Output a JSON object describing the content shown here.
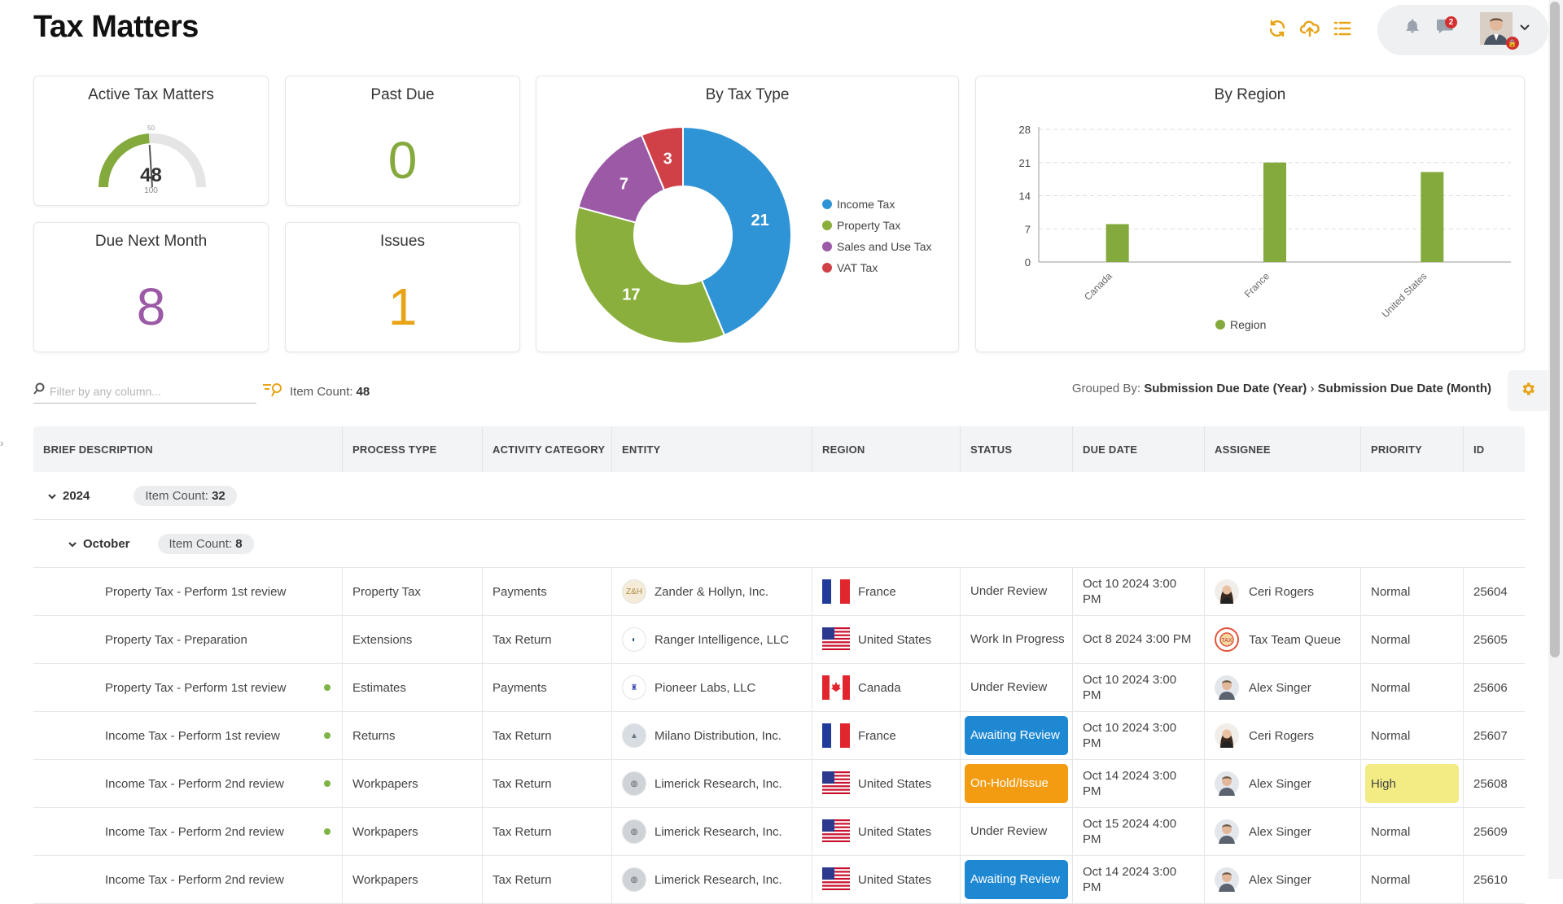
{
  "page": {
    "title": "Tax Matters"
  },
  "header": {
    "icons": [
      "refresh-icon",
      "upload-cloud-icon",
      "list-icon"
    ],
    "notification_icon": "bell-icon",
    "messages_icon": "chat-icon",
    "messages_count": "2",
    "user_menu_icon": "chevron-down-icon"
  },
  "cards": {
    "active": {
      "title": "Active Tax Matters",
      "value": "48",
      "gauge_min_label": "50",
      "gauge_max_label": "100",
      "gauge_fraction": 0.48
    },
    "past_due": {
      "title": "Past Due",
      "value": "0"
    },
    "due_next": {
      "title": "Due Next Month",
      "value": "8"
    },
    "issues": {
      "title": "Issues",
      "value": "1"
    }
  },
  "chart_data": [
    {
      "type": "pie",
      "title": "By Tax Type",
      "categories": [
        "Income Tax",
        "Property Tax",
        "Sales and Use Tax",
        "VAT Tax"
      ],
      "values": [
        21,
        17,
        7,
        3
      ],
      "colors": [
        "#2f94d6",
        "#8aaf3d",
        "#9b59a6",
        "#d04047"
      ],
      "legend": "right"
    },
    {
      "type": "bar",
      "title": "By Region",
      "categories": [
        "Canada",
        "France",
        "United States"
      ],
      "series": [
        {
          "name": "Region",
          "values": [
            8,
            21,
            19
          ]
        }
      ],
      "yticks": [
        "0",
        "7",
        "14",
        "21",
        "28"
      ],
      "ylim": [
        0,
        28
      ],
      "grid": true,
      "legend": "bottom",
      "color": "#84a93c"
    }
  ],
  "toolbar": {
    "filter_placeholder": "Filter by any column...",
    "item_count_label": "Item Count:",
    "item_count": "48",
    "grouped_label": "Grouped By:",
    "group1": "Submission Due Date (Year)",
    "group2": "Submission Due Date (Month)"
  },
  "table": {
    "headers": [
      "BRIEF DESCRIPTION",
      "PROCESS TYPE",
      "ACTIVITY CATEGORY",
      "ENTITY",
      "REGION",
      "STATUS",
      "DUE DATE",
      "ASSIGNEE",
      "PRIORITY",
      "ID"
    ],
    "year_group": {
      "label": "2024",
      "count_label": "Item Count:",
      "count": "32"
    },
    "month_group": {
      "label": "October",
      "count_label": "Item Count:",
      "count": "8"
    },
    "rows": [
      {
        "desc": "Property Tax - Perform 1st review",
        "dot": false,
        "process": "Property Tax",
        "activity": "Payments",
        "entity": "Zander & Hollyn, Inc.",
        "region": "France",
        "status": "Under Review",
        "status_style": "plain",
        "due": "Oct 10 2024 3:00 PM",
        "assignee": "Ceri Rogers",
        "priority": "Normal",
        "priority_style": "plain",
        "id": "25604"
      },
      {
        "desc": "Property Tax - Preparation",
        "dot": false,
        "process": "Extensions",
        "activity": "Tax Return",
        "entity": "Ranger Intelligence, LLC",
        "region": "United States",
        "status": "Work In Progress",
        "status_style": "plain",
        "due": "Oct 8 2024 3:00 PM",
        "assignee": "Tax Team Queue",
        "priority": "Normal",
        "priority_style": "plain",
        "id": "25605"
      },
      {
        "desc": "Property Tax - Perform 1st review",
        "dot": true,
        "process": "Estimates",
        "activity": "Payments",
        "entity": "Pioneer Labs, LLC",
        "region": "Canada",
        "status": "Under Review",
        "status_style": "plain",
        "due": "Oct 10 2024 3:00 PM",
        "assignee": "Alex Singer",
        "priority": "Normal",
        "priority_style": "plain",
        "id": "25606"
      },
      {
        "desc": "Income Tax - Perform 1st review",
        "dot": true,
        "process": "Returns",
        "activity": "Tax Return",
        "entity": "Milano Distribution, Inc.",
        "region": "France",
        "status": "Awaiting Review",
        "status_style": "blue",
        "due": "Oct 10 2024 3:00 PM",
        "assignee": "Ceri Rogers",
        "priority": "Normal",
        "priority_style": "plain",
        "id": "25607"
      },
      {
        "desc": "Income Tax - Perform 2nd review",
        "dot": true,
        "process": "Workpapers",
        "activity": "Tax Return",
        "entity": "Limerick Research, Inc.",
        "region": "United States",
        "status": "On-Hold/Issue",
        "status_style": "orange",
        "due": "Oct 14 2024 3:00 PM",
        "assignee": "Alex Singer",
        "priority": "High",
        "priority_style": "yellow",
        "id": "25608"
      },
      {
        "desc": "Income Tax - Perform 2nd review",
        "dot": true,
        "process": "Workpapers",
        "activity": "Tax Return",
        "entity": "Limerick Research, Inc.",
        "region": "United States",
        "status": "Under Review",
        "status_style": "plain",
        "due": "Oct 15 2024 4:00 PM",
        "assignee": "Alex Singer",
        "priority": "Normal",
        "priority_style": "plain",
        "id": "25609"
      },
      {
        "desc": "Income Tax - Perform 2nd review",
        "dot": false,
        "process": "Workpapers",
        "activity": "Tax Return",
        "entity": "Limerick Research, Inc.",
        "region": "United States",
        "status": "Awaiting Review",
        "status_style": "blue",
        "due": "Oct 14 2024 3:00 PM",
        "assignee": "Alex Singer",
        "priority": "Normal",
        "priority_style": "plain",
        "id": "25610"
      }
    ]
  }
}
